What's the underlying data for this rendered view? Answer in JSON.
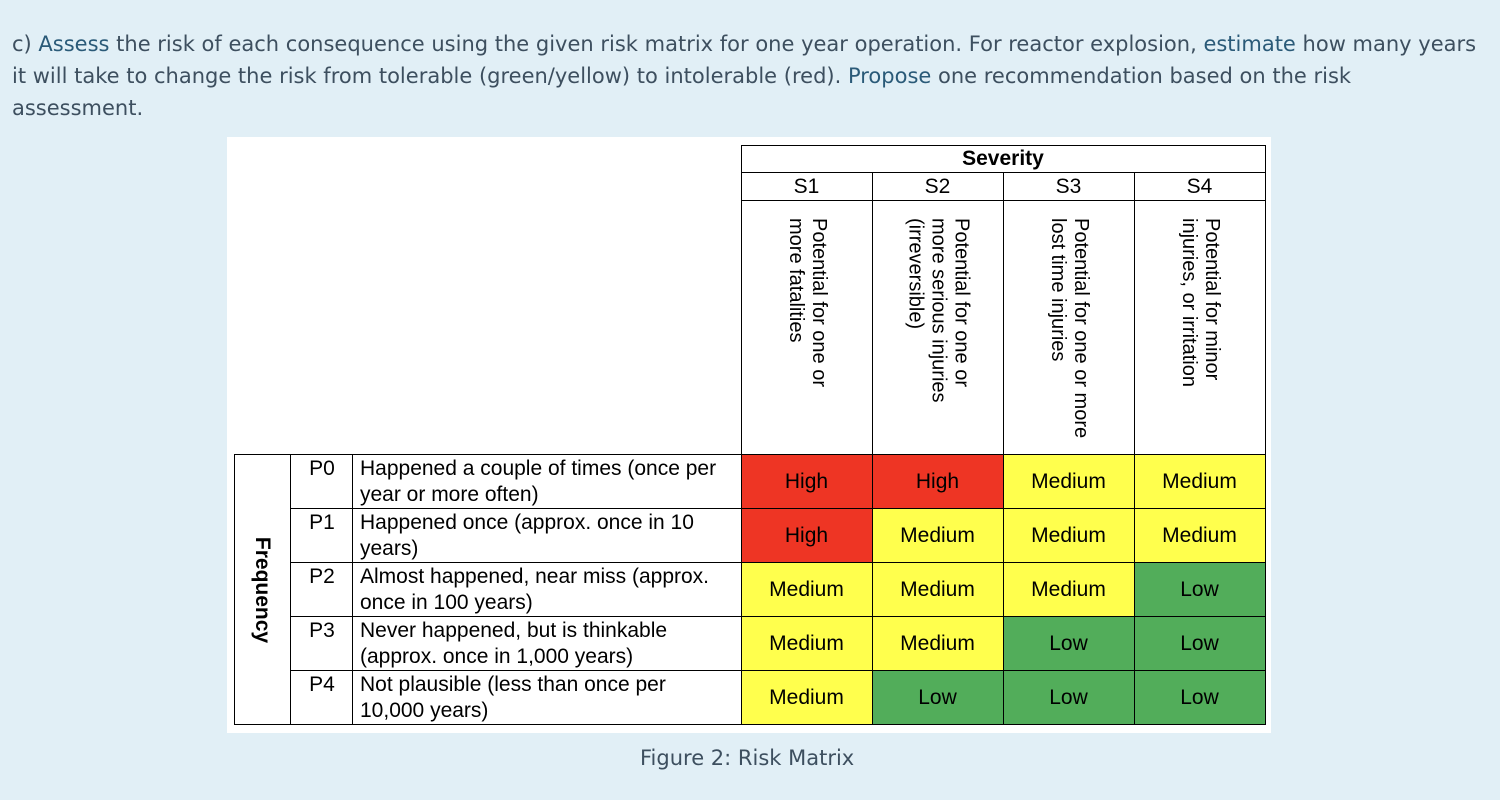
{
  "question": {
    "prefix": "c) ",
    "w1": "Assess",
    "t1": " the risk of each consequence using the given risk matrix for one year operation.  For reactor explosion, ",
    "w2": "estimate",
    "t2": " how many years it will take to change the risk from tolerable (green/yellow) to intolerable (red).  ",
    "w3": "Propose",
    "t3": " one recommendation based on the risk assessment."
  },
  "matrix": {
    "severity_title": "Severity",
    "frequency_title": "Frequency",
    "severity_levels": [
      {
        "code": "S1",
        "description": "Potential for one or more fatalities"
      },
      {
        "code": "S2",
        "description": "Potential for one or more serious injuries (irreversible)"
      },
      {
        "code": "S3",
        "description": "Potential for one or more lost time injuries"
      },
      {
        "code": "S4",
        "description": "Potential for minor injuries, or irritation"
      }
    ],
    "frequency_levels": [
      {
        "code": "P0",
        "description": "Happened a couple of times (once per year or more often)",
        "risks": [
          "High",
          "High",
          "Medium",
          "Medium"
        ]
      },
      {
        "code": "P1",
        "description": "Happened once (approx. once in 10 years)",
        "risks": [
          "High",
          "Medium",
          "Medium",
          "Medium"
        ]
      },
      {
        "code": "P2",
        "description": "Almost happened, near miss (approx. once in 100 years)",
        "risks": [
          "Medium",
          "Medium",
          "Medium",
          "Low"
        ]
      },
      {
        "code": "P3",
        "description": "Never happened, but is thinkable (approx. once in 1,000 years)",
        "risks": [
          "Medium",
          "Medium",
          "Low",
          "Low"
        ]
      },
      {
        "code": "P4",
        "description": "Not plausible (less than once per 10,000 years)",
        "risks": [
          "Medium",
          "Low",
          "Low",
          "Low"
        ]
      }
    ],
    "colors": {
      "High": "#ee3524",
      "Medium": "#ffff4d",
      "Low": "#52ad5a"
    }
  },
  "caption": "Figure 2: Risk Matrix"
}
